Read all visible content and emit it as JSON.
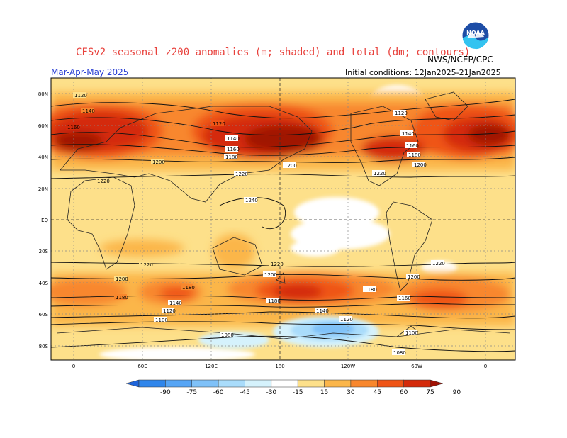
{
  "header": {
    "title": "CFSv2 seasonal z200 anomalies (m; shaded) and total (dm; contours)",
    "agency": "NWS/NCEP/CPC",
    "season": "Mar-Apr-May 2025",
    "initial_conditions": "Initial conditions: 12Jan2025-21Jan2025",
    "logo_text": "NOAA"
  },
  "map": {
    "lat_labels": [
      "80N",
      "60N",
      "40N",
      "20N",
      "EQ",
      "20S",
      "40S",
      "60S",
      "80S"
    ],
    "lon_labels": [
      "0",
      "60E",
      "120E",
      "180",
      "120W",
      "60W",
      "0"
    ],
    "contour_labels": [
      "1120",
      "1140",
      "1160",
      "1180",
      "1200",
      "1220",
      "1240",
      "1100",
      "1080"
    ]
  },
  "colorbar": {
    "ticks": [
      "-90",
      "-75",
      "-60",
      "-45",
      "-30",
      "-15",
      "15",
      "30",
      "45",
      "60",
      "75",
      "90"
    ],
    "colors": [
      "#1e64d9",
      "#2f86eb",
      "#56a5f5",
      "#7fc1f8",
      "#a9dcfb",
      "#d5f2fc",
      "#ffffff",
      "#fde08a",
      "#fbb64a",
      "#f8872d",
      "#ef5416",
      "#d42a0a",
      "#a01205"
    ]
  },
  "chart_data": {
    "type": "heatmap",
    "field": "z200 anomaly",
    "units": "m",
    "levels": [
      -90,
      -75,
      -60,
      -45,
      -30,
      -15,
      15,
      30,
      45,
      60,
      75,
      90
    ]
  }
}
